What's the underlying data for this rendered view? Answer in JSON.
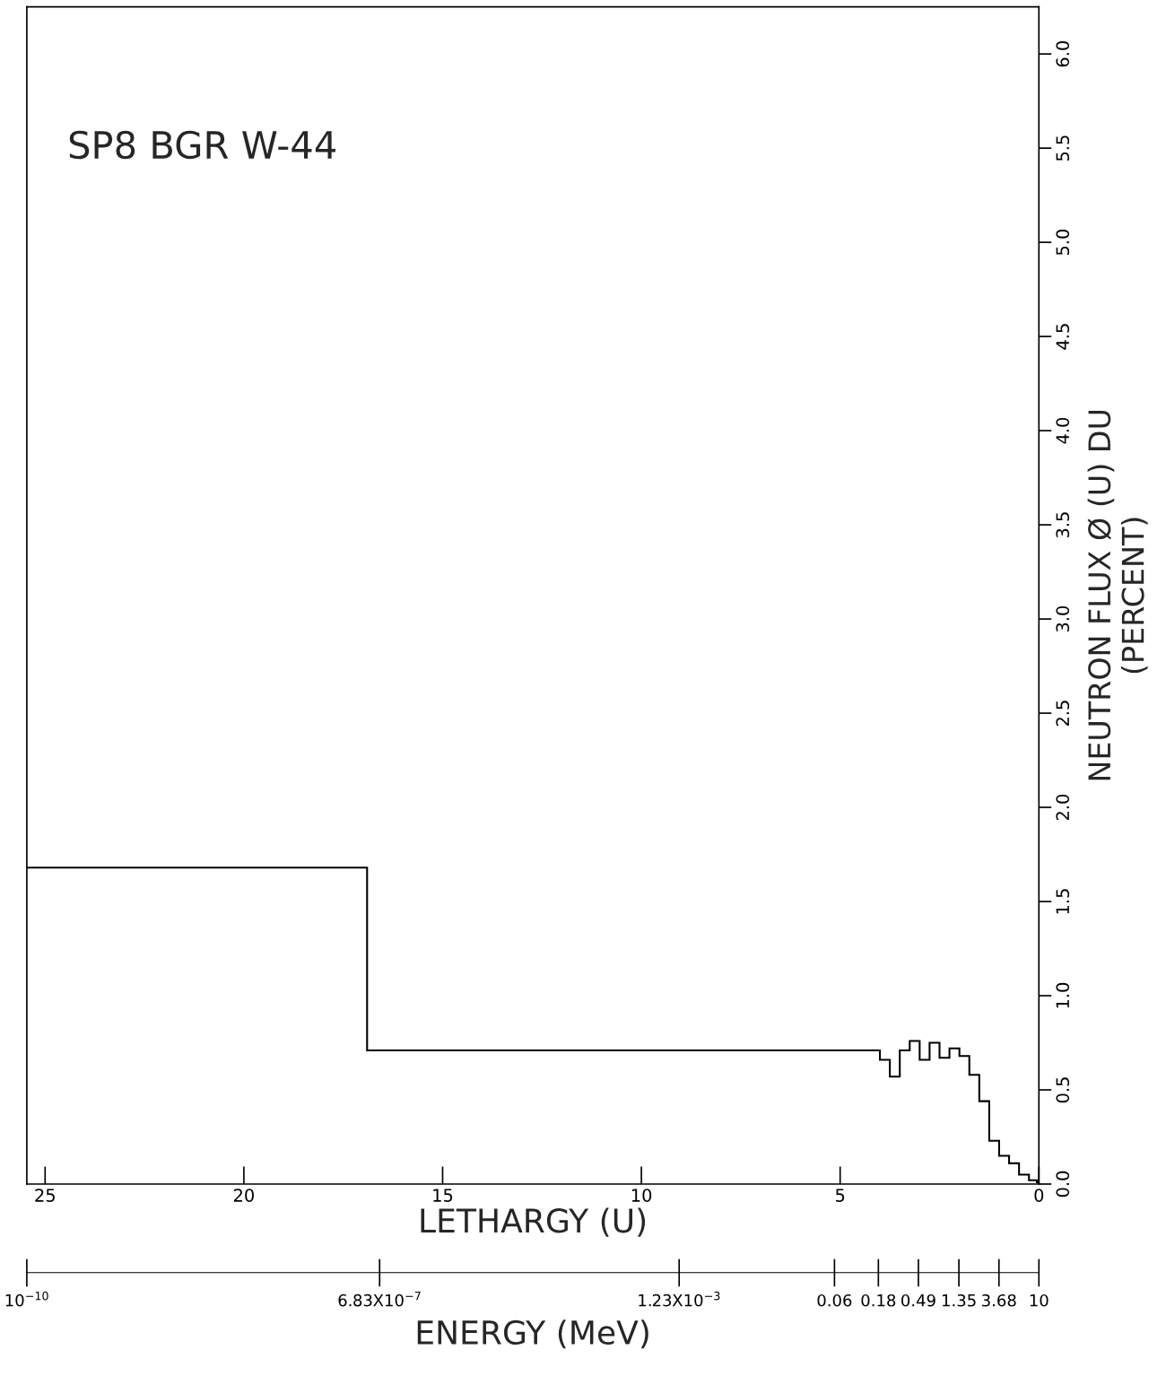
{
  "chart_data": {
    "type": "histogram",
    "bins": [
      0,
      0.05,
      0.25,
      0.5,
      0.75,
      1.0,
      1.25,
      1.5,
      1.75,
      2.0,
      2.25,
      2.5,
      2.75,
      3.0,
      3.25,
      3.5,
      3.75,
      4.0,
      16.9,
      25.46
    ],
    "values": [
      0.01,
      0.02,
      0.05,
      0.11,
      0.15,
      0.23,
      0.44,
      0.58,
      0.68,
      0.72,
      0.67,
      0.75,
      0.66,
      0.76,
      0.71,
      0.57,
      0.66,
      0.71,
      1.68
    ],
    "color": "#000000",
    "xlabel": "LETHARGY (U)",
    "ylabel": "NEUTRON FLUX Ø (U) DU\n(PERCENT)",
    "x2label": "ENERGY (MeV)",
    "xlim": [
      25.46,
      0
    ],
    "xticks": [
      25,
      20,
      15,
      10,
      5,
      0
    ],
    "ylim": [
      0,
      6.25
    ],
    "yticks": [
      {
        "value": 0,
        "label": "0.0"
      },
      {
        "value": 0.5,
        "label": "0.5"
      },
      {
        "value": 1,
        "label": "1.0"
      },
      {
        "value": 1.5,
        "label": "1.5"
      },
      {
        "value": 2,
        "label": "2.0"
      },
      {
        "value": 2.5,
        "label": "2.5"
      },
      {
        "value": 3,
        "label": "3.0"
      },
      {
        "value": 3.5,
        "label": "3.5"
      },
      {
        "value": 4,
        "label": "4.0"
      },
      {
        "value": 4.5,
        "label": "4.5"
      },
      {
        "value": 5,
        "label": "5.0"
      },
      {
        "value": 5.5,
        "label": "5.5"
      },
      {
        "value": 6,
        "label": "6.0"
      }
    ],
    "x2lim": [
      1e-10,
      10
    ],
    "x2ticks": [
      {
        "value": 1e-10,
        "label": "10$^{−10}$"
      },
      {
        "value": 6.83e-07,
        "label": "6.83X10$^{−7}$"
      },
      {
        "value": 0.00123,
        "label": "1.23X10$^{−3}$"
      },
      {
        "value": 0.06,
        "label": "0.06"
      },
      {
        "value": 0.18,
        "label": "0.18"
      },
      {
        "value": 0.49,
        "label": "0.49"
      },
      {
        "value": 1.35,
        "label": "1.35"
      },
      {
        "value": 3.68,
        "label": "3.68"
      },
      {
        "value": 10,
        "label": "10"
      }
    ],
    "annotations": [
      "SP8 BGR W-44"
    ],
    "log": "x2",
    "grid": false,
    "legend": false
  }
}
